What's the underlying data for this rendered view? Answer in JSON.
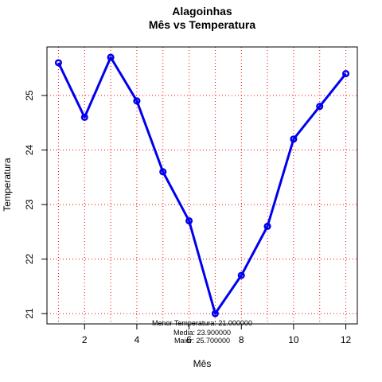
{
  "chart_data": {
    "type": "line",
    "title": "Alagoinhas",
    "subtitle": "Mês vs Temperatura",
    "xlabel": "Mês",
    "ylabel": "Temperatura",
    "x": [
      1,
      2,
      3,
      4,
      5,
      6,
      7,
      8,
      9,
      10,
      11,
      12
    ],
    "series": [
      {
        "values": [
          25.6,
          24.6,
          25.7,
          24.9,
          23.6,
          22.7,
          21.0,
          21.7,
          22.6,
          24.2,
          24.8,
          25.4
        ]
      }
    ],
    "xlim": [
      0.56,
      12.44
    ],
    "ylim": [
      20.81,
      25.89
    ],
    "xticks": [
      2,
      4,
      6,
      8,
      10,
      12
    ],
    "yticks": [
      21,
      22,
      23,
      24,
      25
    ],
    "grid": true,
    "line_color": "#0000ee",
    "grid_color": "#ff0000",
    "annotations": [
      "Menor Temperatura: 21.000000",
      "Media: 23.900000",
      "Maior: 25.700000"
    ]
  }
}
